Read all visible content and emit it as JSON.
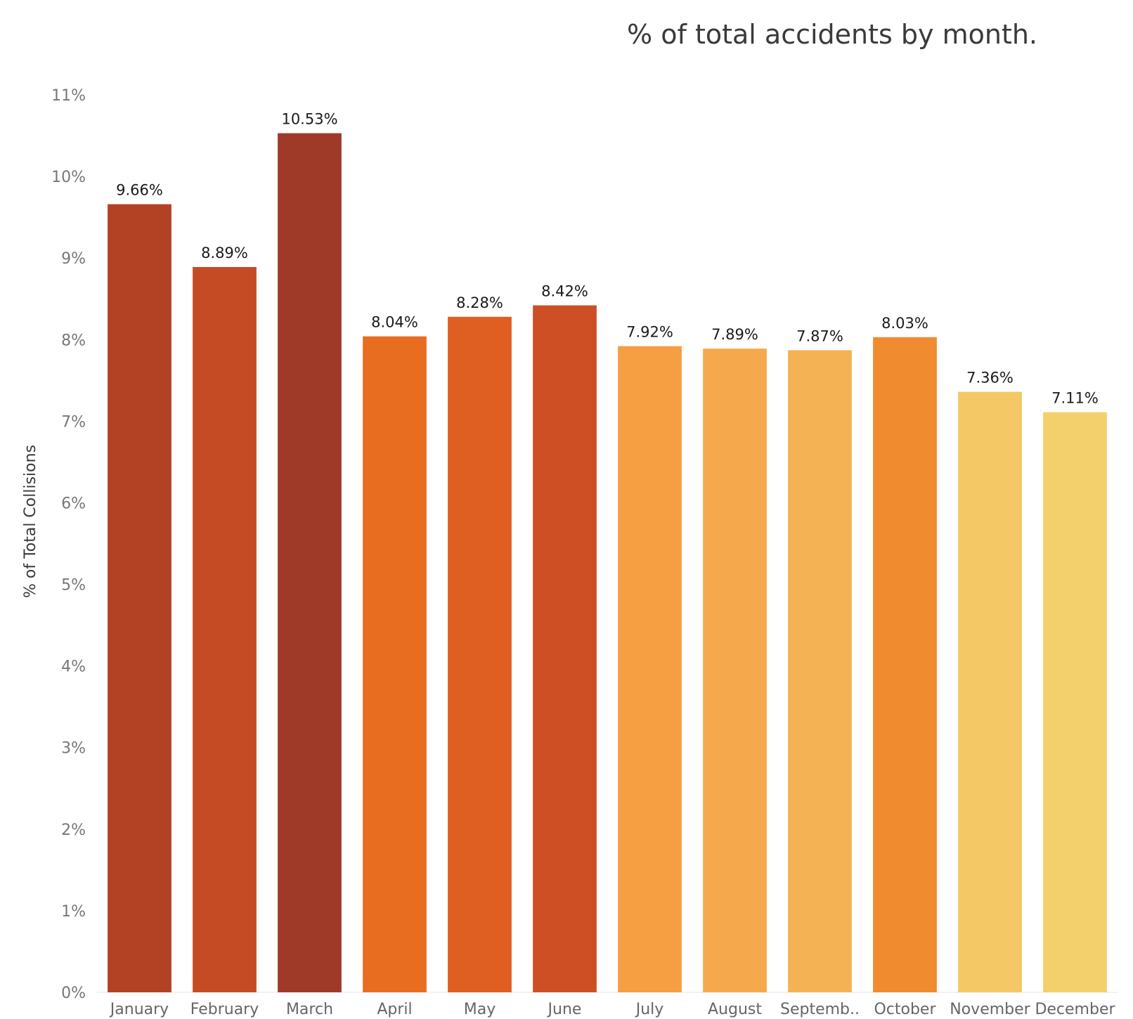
{
  "chart_data": {
    "type": "bar",
    "title": "% of total accidents by month.",
    "xlabel": "",
    "ylabel": "% of Total Collisions",
    "ylim": [
      0,
      11
    ],
    "yticks": [
      "0%",
      "1%",
      "2%",
      "3%",
      "4%",
      "5%",
      "6%",
      "7%",
      "8%",
      "9%",
      "10%",
      "11%"
    ],
    "grid": false,
    "legend": "none",
    "categories": [
      "January",
      "February",
      "March",
      "April",
      "May",
      "June",
      "July",
      "August",
      "Septemb..",
      "October",
      "November",
      "December"
    ],
    "values": [
      9.66,
      8.89,
      10.53,
      8.04,
      8.28,
      8.42,
      7.92,
      7.89,
      7.87,
      8.03,
      7.36,
      7.11
    ],
    "data_labels": [
      "9.66%",
      "8.89%",
      "10.53%",
      "8.04%",
      "8.28%",
      "8.42%",
      "7.92%",
      "7.89%",
      "7.87%",
      "8.03%",
      "7.36%",
      "7.11%"
    ],
    "colors": [
      "#b34124",
      "#c54b24",
      "#9e3a27",
      "#e96d21",
      "#df5e22",
      "#cd4f23",
      "#f69e42",
      "#f5a94c",
      "#f5b254",
      "#f08b2f",
      "#f4c865",
      "#f3d06b"
    ]
  }
}
